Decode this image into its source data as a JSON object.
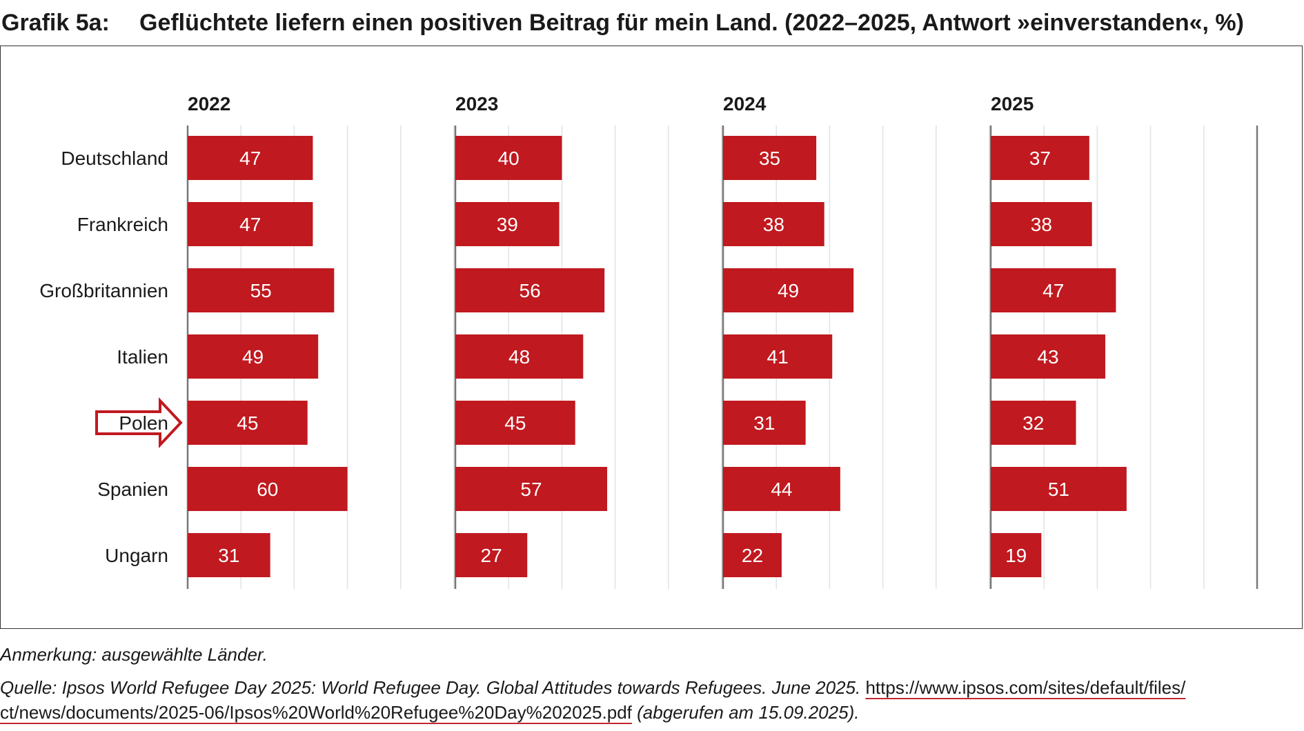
{
  "header": {
    "label": "Grafik 5a:",
    "title": "Geflüchtete liefern einen positiven Beitrag für mein Land. (2022–2025, Antwort »einverstanden«, %)"
  },
  "chart_data": {
    "type": "bar",
    "orientation": "horizontal",
    "panels": [
      "2022",
      "2023",
      "2024",
      "2025"
    ],
    "categories": [
      "Deutschland",
      "Frankreich",
      "Großbritannien",
      "Italien",
      "Polen",
      "Spanien",
      "Ungarn"
    ],
    "series": [
      {
        "name": "2022",
        "values": [
          47,
          47,
          55,
          49,
          45,
          60,
          31
        ]
      },
      {
        "name": "2023",
        "values": [
          40,
          39,
          56,
          48,
          45,
          57,
          27
        ]
      },
      {
        "name": "2024",
        "values": [
          35,
          38,
          49,
          41,
          31,
          44,
          22
        ]
      },
      {
        "name": "2025",
        "values": [
          37,
          38,
          47,
          43,
          32,
          51,
          19
        ]
      }
    ],
    "xlim": [
      0,
      100
    ],
    "highlight_category": "Polen",
    "grid": true,
    "bar_color": "#c0191f",
    "label_color": "#ffffff",
    "highlight_color": "#c0191f"
  },
  "footer": {
    "note": "Anmerkung: ausgewählte Länder.",
    "source_prefix": "Quelle: Ipsos World Refugee Day 2025: World Refugee Day. Global Attitudes towards Refugees. June 2025. ",
    "url_part1": "https://www.ipsos.com/sites/default/files/",
    "url_part2": "ct/news/documents/2025-06/Ipsos%20World%20Refugee%20Day%202025.pdf",
    "source_suffix": " (abgerufen am 15.09.2025)."
  }
}
